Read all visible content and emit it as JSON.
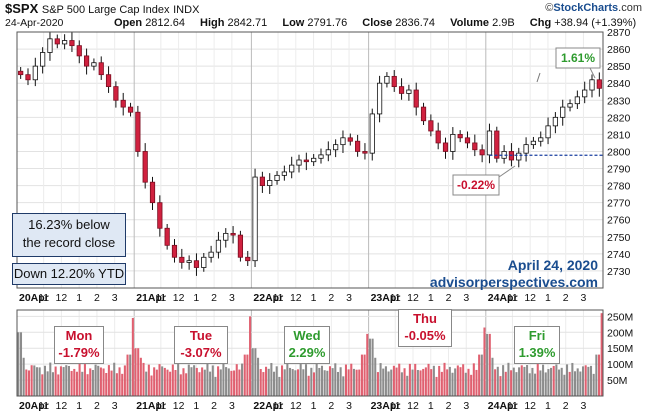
{
  "header": {
    "symbol": "$SPX",
    "name": "S&P 500 Large Cap Index",
    "exchange": "INDX",
    "date": "24-Apr-2020",
    "open_label": "Open",
    "open": "2812.64",
    "high_label": "High",
    "high": "2842.71",
    "low_label": "Low",
    "low": "2791.76",
    "close_label": "Close",
    "close": "2836.74",
    "volume_label": "Volume",
    "volume": "2.9B",
    "chg_label": "Chg",
    "chg": "+38.94 (+1.39%)",
    "watermark_prefix": "©",
    "watermark_brand": "StockCharts",
    "watermark_suffix": ".com"
  },
  "notes": {
    "record": [
      "16.23% below",
      "the record close"
    ],
    "ytd": "Down 12.20% YTD",
    "date_caption": "April 24, 2020",
    "site": "advisorperspectives.com",
    "pct_high": "1.61%",
    "pct_low": "-0.22%"
  },
  "days": [
    {
      "name": "Mon",
      "change": "-1.79%",
      "color": "#c8102e"
    },
    {
      "name": "Tue",
      "change": "-3.07%",
      "color": "#c8102e"
    },
    {
      "name": "Wed",
      "change": "2.29%",
      "color": "#2e9b2e"
    },
    {
      "name": "Thu",
      "change": "-0.05%",
      "color": "#c8102e"
    },
    {
      "name": "Fri",
      "change": "1.39%",
      "color": "#2e9b2e"
    }
  ],
  "chart_data": [
    {
      "type": "candlestick",
      "title": "",
      "ylabel": "",
      "ylim": [
        2720,
        2870
      ],
      "y_ticks": [
        2730,
        2740,
        2750,
        2760,
        2770,
        2780,
        2790,
        2800,
        2810,
        2820,
        2830,
        2840,
        2850,
        2860,
        2870
      ],
      "reference_line": 2797.8,
      "x_tick_labels": [
        "20Apr",
        "11",
        "12",
        "1",
        "2",
        "3",
        "21Apr",
        "11",
        "12",
        "1",
        "2",
        "3",
        "22Apr",
        "11",
        "12",
        "1",
        "2",
        "3",
        "23Apr",
        "11",
        "12",
        "1",
        "2",
        "3",
        "24Apr",
        "11",
        "12",
        "1",
        "2",
        "3"
      ],
      "session_closes": [
        {
          "date": "20-Apr-2020",
          "open": 2845.62,
          "close": 2823.16
        },
        {
          "date": "21-Apr-2020",
          "close": 2736.56
        },
        {
          "date": "22-Apr-2020",
          "close": 2799.31
        },
        {
          "date": "23-Apr-2020",
          "close": 2797.8
        },
        {
          "date": "24-Apr-2020",
          "open": 2812.64,
          "high": 2842.71,
          "low": 2791.76,
          "close": 2836.74
        }
      ],
      "intraday_path": [
        [
          0,
          2845
        ],
        [
          1,
          2842
        ],
        [
          2,
          2850
        ],
        [
          3,
          2858
        ],
        [
          4,
          2866
        ],
        [
          5,
          2863
        ],
        [
          6,
          2865
        ],
        [
          7,
          2862
        ],
        [
          8,
          2856
        ],
        [
          9,
          2850
        ],
        [
          10,
          2852
        ],
        [
          11,
          2845
        ],
        [
          12,
          2838
        ],
        [
          13,
          2830
        ],
        [
          14,
          2826
        ],
        [
          15,
          2823
        ],
        [
          16,
          2800
        ],
        [
          17,
          2782
        ],
        [
          18,
          2770
        ],
        [
          19,
          2755
        ],
        [
          20,
          2745
        ],
        [
          21,
          2738
        ],
        [
          22,
          2735
        ],
        [
          23,
          2736
        ],
        [
          24,
          2732
        ],
        [
          25,
          2738
        ],
        [
          26,
          2741
        ],
        [
          27,
          2748
        ],
        [
          28,
          2752
        ],
        [
          29,
          2751
        ],
        [
          30,
          2738
        ],
        [
          31,
          2736
        ],
        [
          32,
          2785
        ],
        [
          33,
          2780
        ],
        [
          34,
          2783
        ],
        [
          35,
          2786
        ],
        [
          36,
          2788
        ],
        [
          37,
          2792
        ],
        [
          38,
          2795
        ],
        [
          39,
          2794
        ],
        [
          40,
          2796
        ],
        [
          41,
          2798
        ],
        [
          42,
          2801
        ],
        [
          43,
          2804
        ],
        [
          44,
          2808
        ],
        [
          45,
          2806
        ],
        [
          46,
          2800
        ],
        [
          47,
          2799
        ],
        [
          48,
          2822
        ],
        [
          49,
          2840
        ],
        [
          50,
          2844
        ],
        [
          51,
          2838
        ],
        [
          52,
          2834
        ],
        [
          53,
          2836
        ],
        [
          54,
          2826
        ],
        [
          55,
          2818
        ],
        [
          56,
          2812
        ],
        [
          57,
          2805
        ],
        [
          58,
          2800
        ],
        [
          59,
          2810
        ],
        [
          60,
          2808
        ],
        [
          61,
          2805
        ],
        [
          62,
          2801
        ],
        [
          63,
          2798
        ],
        [
          64,
          2812
        ],
        [
          65,
          2796
        ],
        [
          66,
          2800
        ],
        [
          67,
          2795
        ],
        [
          68,
          2799
        ],
        [
          69,
          2804
        ],
        [
          70,
          2806
        ],
        [
          71,
          2808
        ],
        [
          72,
          2815
        ],
        [
          73,
          2820
        ],
        [
          74,
          2826
        ],
        [
          75,
          2828
        ],
        [
          76,
          2832
        ],
        [
          77,
          2836
        ],
        [
          78,
          2842
        ],
        [
          79,
          2837
        ]
      ]
    },
    {
      "type": "bar",
      "title": "",
      "ylabel": "",
      "ylim": [
        0,
        270
      ],
      "unit": "M",
      "y_ticks": [
        50,
        100,
        150,
        200,
        250
      ],
      "y_tick_labels": [
        "50M",
        "100M",
        "150M",
        "200M",
        "250M"
      ],
      "x_tick_labels": [
        "20Apr",
        "11",
        "12",
        "1",
        "2",
        "3",
        "21Apr",
        "11",
        "12",
        "1",
        "2",
        "3",
        "22Apr",
        "11",
        "12",
        "1",
        "2",
        "3",
        "23Apr",
        "11",
        "12",
        "1",
        "2",
        "3",
        "24Apr",
        "11",
        "12",
        "1",
        "2",
        "3"
      ],
      "volume_peaks": [
        {
          "session": "20-Apr open",
          "value": 200
        },
        {
          "session": "20-Apr close",
          "value": 245
        },
        {
          "session": "21-Apr close",
          "value": 250
        },
        {
          "session": "22-Apr close",
          "value": 195
        },
        {
          "session": "23-Apr open",
          "value": 180
        },
        {
          "session": "23-Apr close",
          "value": 215
        },
        {
          "session": "24-Apr open",
          "value": 195
        },
        {
          "session": "24-Apr close",
          "value": 260
        }
      ]
    }
  ]
}
